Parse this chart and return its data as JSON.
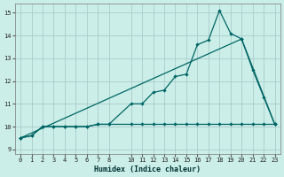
{
  "xlabel": "Humidex (Indice chaleur)",
  "bg_color": "#cceee8",
  "grid_color": "#aacccc",
  "line_color": "#006666",
  "xlim": [
    -0.5,
    23.5
  ],
  "ylim": [
    8.8,
    15.4
  ],
  "yticks": [
    9,
    10,
    11,
    12,
    13,
    14,
    15
  ],
  "xticks": [
    0,
    1,
    2,
    3,
    4,
    5,
    6,
    7,
    8,
    10,
    11,
    12,
    13,
    14,
    15,
    16,
    17,
    18,
    19,
    20,
    21,
    22,
    23
  ],
  "line1_x": [
    0,
    1,
    2,
    3,
    4,
    5,
    6,
    7,
    8,
    10,
    11,
    12,
    13,
    14,
    15,
    16,
    17,
    18,
    19,
    20,
    21,
    22,
    23
  ],
  "line1_y": [
    9.5,
    9.6,
    10.0,
    10.0,
    10.0,
    10.0,
    10.0,
    10.1,
    10.1,
    11.0,
    11.0,
    11.5,
    11.6,
    12.2,
    12.3,
    13.6,
    13.8,
    15.1,
    14.1,
    13.85,
    12.5,
    11.3,
    10.1
  ],
  "line2_x": [
    0,
    1,
    2,
    3,
    4,
    5,
    6,
    7,
    8,
    10,
    11,
    12,
    13,
    14,
    15,
    16,
    17,
    18,
    19,
    20,
    21,
    22,
    23
  ],
  "line2_y": [
    9.5,
    9.6,
    10.0,
    10.0,
    10.0,
    10.0,
    10.0,
    10.1,
    10.1,
    10.1,
    10.1,
    10.1,
    10.1,
    10.1,
    10.1,
    10.1,
    10.1,
    10.1,
    10.1,
    10.1,
    10.1,
    10.1,
    10.1
  ],
  "line3_x": [
    0,
    20,
    23
  ],
  "line3_y": [
    9.5,
    13.85,
    10.1
  ]
}
